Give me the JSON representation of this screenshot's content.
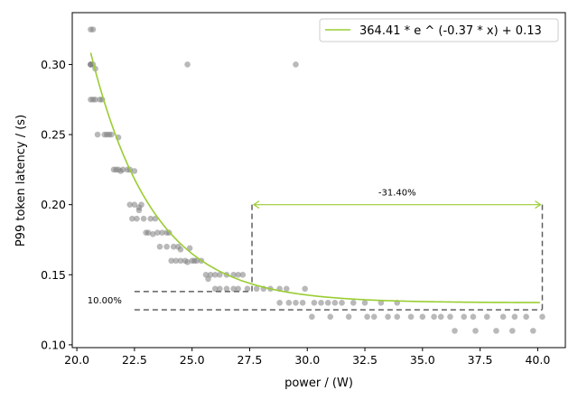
{
  "chart_data": {
    "type": "scatter",
    "xlabel": "power / (W)",
    "ylabel": "P99 token latency / (s)",
    "xlim": [
      19.8,
      41.2
    ],
    "ylim": [
      0.098,
      0.337
    ],
    "xticks": [
      "20.0",
      "22.5",
      "25.0",
      "27.5",
      "30.0",
      "32.5",
      "35.0",
      "37.5",
      "40.0"
    ],
    "yticks": [
      "0.10",
      "0.15",
      "0.20",
      "0.25",
      "0.30"
    ],
    "grid": false,
    "legend_position": "top-right",
    "fit_color": "#9acd32",
    "point_color": "#808080",
    "fit": {
      "label": "364.41 * e ^ (-0.37 * x) + 0.13",
      "a": 364.41,
      "b": -0.37,
      "c": 0.13,
      "x_range": [
        20.6,
        40.1
      ]
    },
    "points": [
      [
        20.6,
        0.325
      ],
      [
        20.7,
        0.325
      ],
      [
        20.6,
        0.3
      ],
      [
        20.6,
        0.3
      ],
      [
        20.7,
        0.3
      ],
      [
        20.6,
        0.3
      ],
      [
        20.8,
        0.297
      ],
      [
        20.6,
        0.275
      ],
      [
        20.7,
        0.275
      ],
      [
        20.8,
        0.275
      ],
      [
        21.0,
        0.275
      ],
      [
        21.1,
        0.275
      ],
      [
        20.9,
        0.25
      ],
      [
        21.2,
        0.25
      ],
      [
        21.3,
        0.25
      ],
      [
        21.4,
        0.25
      ],
      [
        21.5,
        0.25
      ],
      [
        21.8,
        0.248
      ],
      [
        21.6,
        0.225
      ],
      [
        21.7,
        0.225
      ],
      [
        21.8,
        0.225
      ],
      [
        21.9,
        0.224
      ],
      [
        22.0,
        0.225
      ],
      [
        22.2,
        0.225
      ],
      [
        22.3,
        0.225
      ],
      [
        22.5,
        0.224
      ],
      [
        22.3,
        0.2
      ],
      [
        22.5,
        0.2
      ],
      [
        22.7,
        0.198
      ],
      [
        22.8,
        0.2
      ],
      [
        22.7,
        0.196
      ],
      [
        22.4,
        0.19
      ],
      [
        22.6,
        0.19
      ],
      [
        22.9,
        0.19
      ],
      [
        23.2,
        0.19
      ],
      [
        23.4,
        0.19
      ],
      [
        23.0,
        0.18
      ],
      [
        23.1,
        0.18
      ],
      [
        23.3,
        0.179
      ],
      [
        23.5,
        0.18
      ],
      [
        23.7,
        0.18
      ],
      [
        23.9,
        0.18
      ],
      [
        24.0,
        0.18
      ],
      [
        23.6,
        0.17
      ],
      [
        23.9,
        0.17
      ],
      [
        24.2,
        0.17
      ],
      [
        24.4,
        0.17
      ],
      [
        24.5,
        0.168
      ],
      [
        24.9,
        0.169
      ],
      [
        24.1,
        0.16
      ],
      [
        24.3,
        0.16
      ],
      [
        24.5,
        0.16
      ],
      [
        24.7,
        0.16
      ],
      [
        24.8,
        0.159
      ],
      [
        25.0,
        0.16
      ],
      [
        25.1,
        0.16
      ],
      [
        25.2,
        0.16
      ],
      [
        25.4,
        0.16
      ],
      [
        25.6,
        0.15
      ],
      [
        25.8,
        0.15
      ],
      [
        26.0,
        0.15
      ],
      [
        26.2,
        0.15
      ],
      [
        26.5,
        0.15
      ],
      [
        26.8,
        0.15
      ],
      [
        27.0,
        0.15
      ],
      [
        27.2,
        0.15
      ],
      [
        25.7,
        0.147
      ],
      [
        26.0,
        0.14
      ],
      [
        26.2,
        0.14
      ],
      [
        26.5,
        0.14
      ],
      [
        26.8,
        0.14
      ],
      [
        27.0,
        0.14
      ],
      [
        27.4,
        0.14
      ],
      [
        27.8,
        0.14
      ],
      [
        28.1,
        0.14
      ],
      [
        28.4,
        0.14
      ],
      [
        28.8,
        0.14
      ],
      [
        29.1,
        0.14
      ],
      [
        29.9,
        0.14
      ],
      [
        28.8,
        0.13
      ],
      [
        29.2,
        0.13
      ],
      [
        29.5,
        0.13
      ],
      [
        29.8,
        0.13
      ],
      [
        30.3,
        0.13
      ],
      [
        30.6,
        0.13
      ],
      [
        30.9,
        0.13
      ],
      [
        31.2,
        0.13
      ],
      [
        31.5,
        0.13
      ],
      [
        32.0,
        0.13
      ],
      [
        32.5,
        0.13
      ],
      [
        33.2,
        0.13
      ],
      [
        33.9,
        0.13
      ],
      [
        30.2,
        0.12
      ],
      [
        31.0,
        0.12
      ],
      [
        31.8,
        0.12
      ],
      [
        32.6,
        0.12
      ],
      [
        32.9,
        0.12
      ],
      [
        33.5,
        0.12
      ],
      [
        33.9,
        0.12
      ],
      [
        34.5,
        0.12
      ],
      [
        35.0,
        0.12
      ],
      [
        35.5,
        0.12
      ],
      [
        35.8,
        0.12
      ],
      [
        36.2,
        0.12
      ],
      [
        36.8,
        0.12
      ],
      [
        37.2,
        0.12
      ],
      [
        37.8,
        0.12
      ],
      [
        38.5,
        0.12
      ],
      [
        39.0,
        0.12
      ],
      [
        39.5,
        0.12
      ],
      [
        40.2,
        0.12
      ],
      [
        36.4,
        0.11
      ],
      [
        37.3,
        0.11
      ],
      [
        38.2,
        0.11
      ],
      [
        38.9,
        0.11
      ],
      [
        39.8,
        0.11
      ],
      [
        24.8,
        0.3
      ],
      [
        29.5,
        0.3
      ]
    ],
    "annotations": {
      "horizontal_bracket": {
        "label": "-31.40%",
        "x_start": 27.6,
        "x_end": 40.2,
        "y": 0.2,
        "y_left_bottom": 0.138,
        "y_right_bottom": 0.125
      },
      "vertical_bracket": {
        "label": "10.00%",
        "x_start": 22.5,
        "x_end": 27.6,
        "y_top": 0.138,
        "y_bottom": 0.125
      }
    }
  }
}
